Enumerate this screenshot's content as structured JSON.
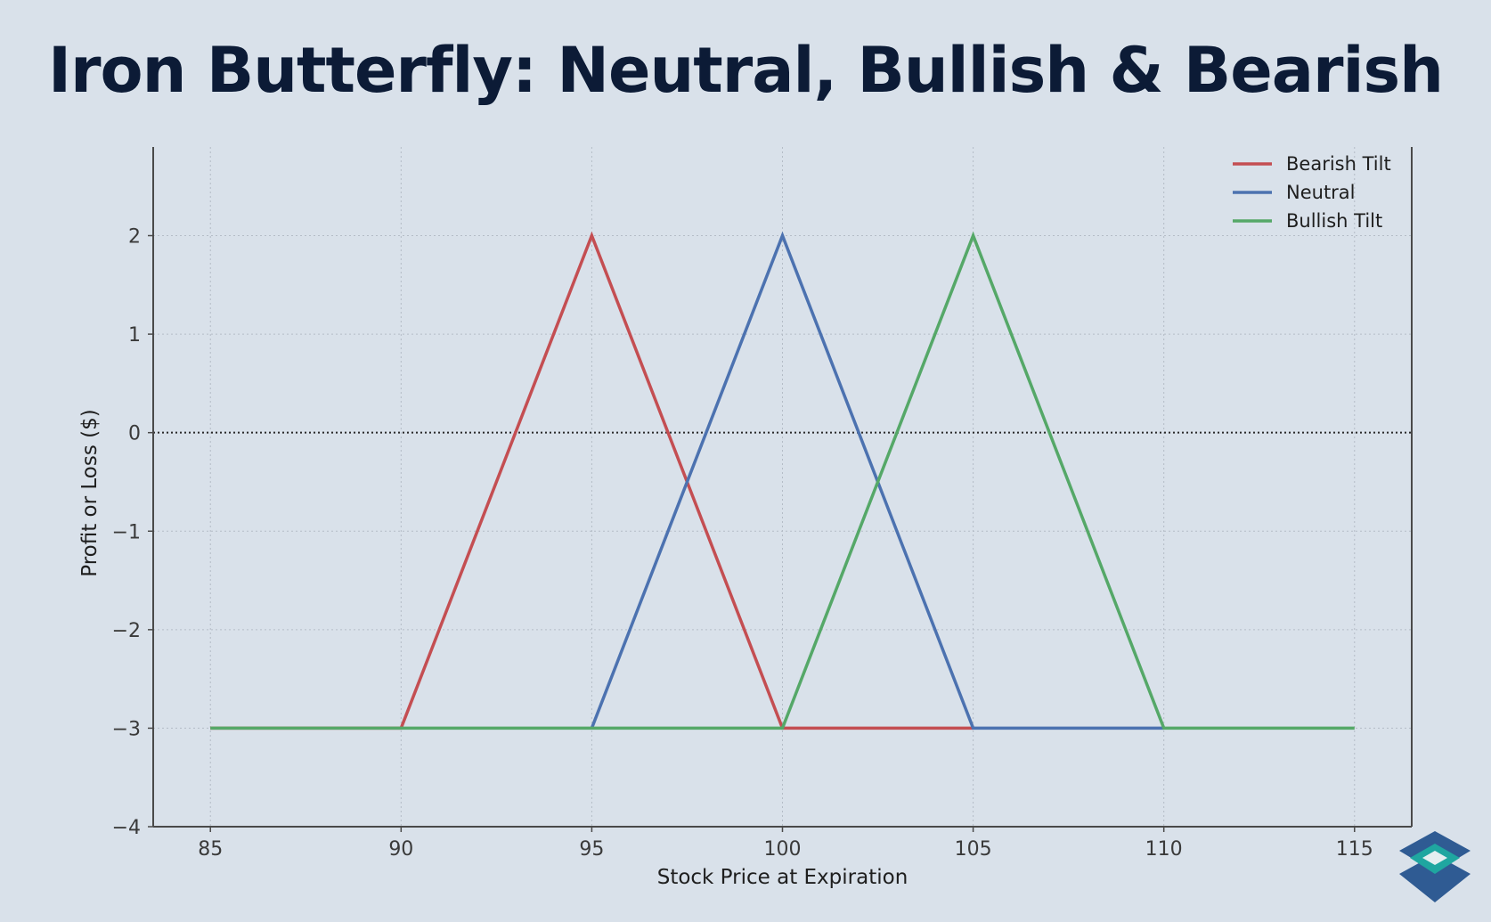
{
  "title": "Iron Butterfly: Neutral, Bullish & Bearish",
  "logo_icon": "layered-diamond-logo-icon",
  "chart_data": {
    "type": "line",
    "xlabel": "Stock Price at Expiration",
    "ylabel": "Profit or Loss ($)",
    "xlim": [
      83.5,
      116.5
    ],
    "ylim": [
      -4,
      2.9
    ],
    "xticks": [
      85,
      90,
      95,
      100,
      105,
      110,
      115
    ],
    "yticks": [
      -4,
      -3,
      -2,
      -1,
      0,
      1,
      2
    ],
    "ytick_labels": [
      "−4",
      "−3",
      "−2",
      "−1",
      "0",
      "1",
      "2"
    ],
    "grid": true,
    "zero_line": 0,
    "legend_position": "top-right",
    "series": [
      {
        "name": "Bearish Tilt",
        "color": "#c44e52",
        "x": [
          85,
          90,
          95,
          100,
          105
        ],
        "y": [
          -3,
          -3,
          2,
          -3,
          -3
        ]
      },
      {
        "name": "Neutral",
        "color": "#4c72b0",
        "x": [
          95,
          100,
          105,
          110
        ],
        "y": [
          -3,
          2,
          -3,
          -3
        ]
      },
      {
        "name": "Bullish Tilt",
        "color": "#55a868",
        "x": [
          85,
          100,
          105,
          110,
          115
        ],
        "y": [
          -3,
          -3,
          2,
          -3,
          -3
        ]
      }
    ]
  }
}
